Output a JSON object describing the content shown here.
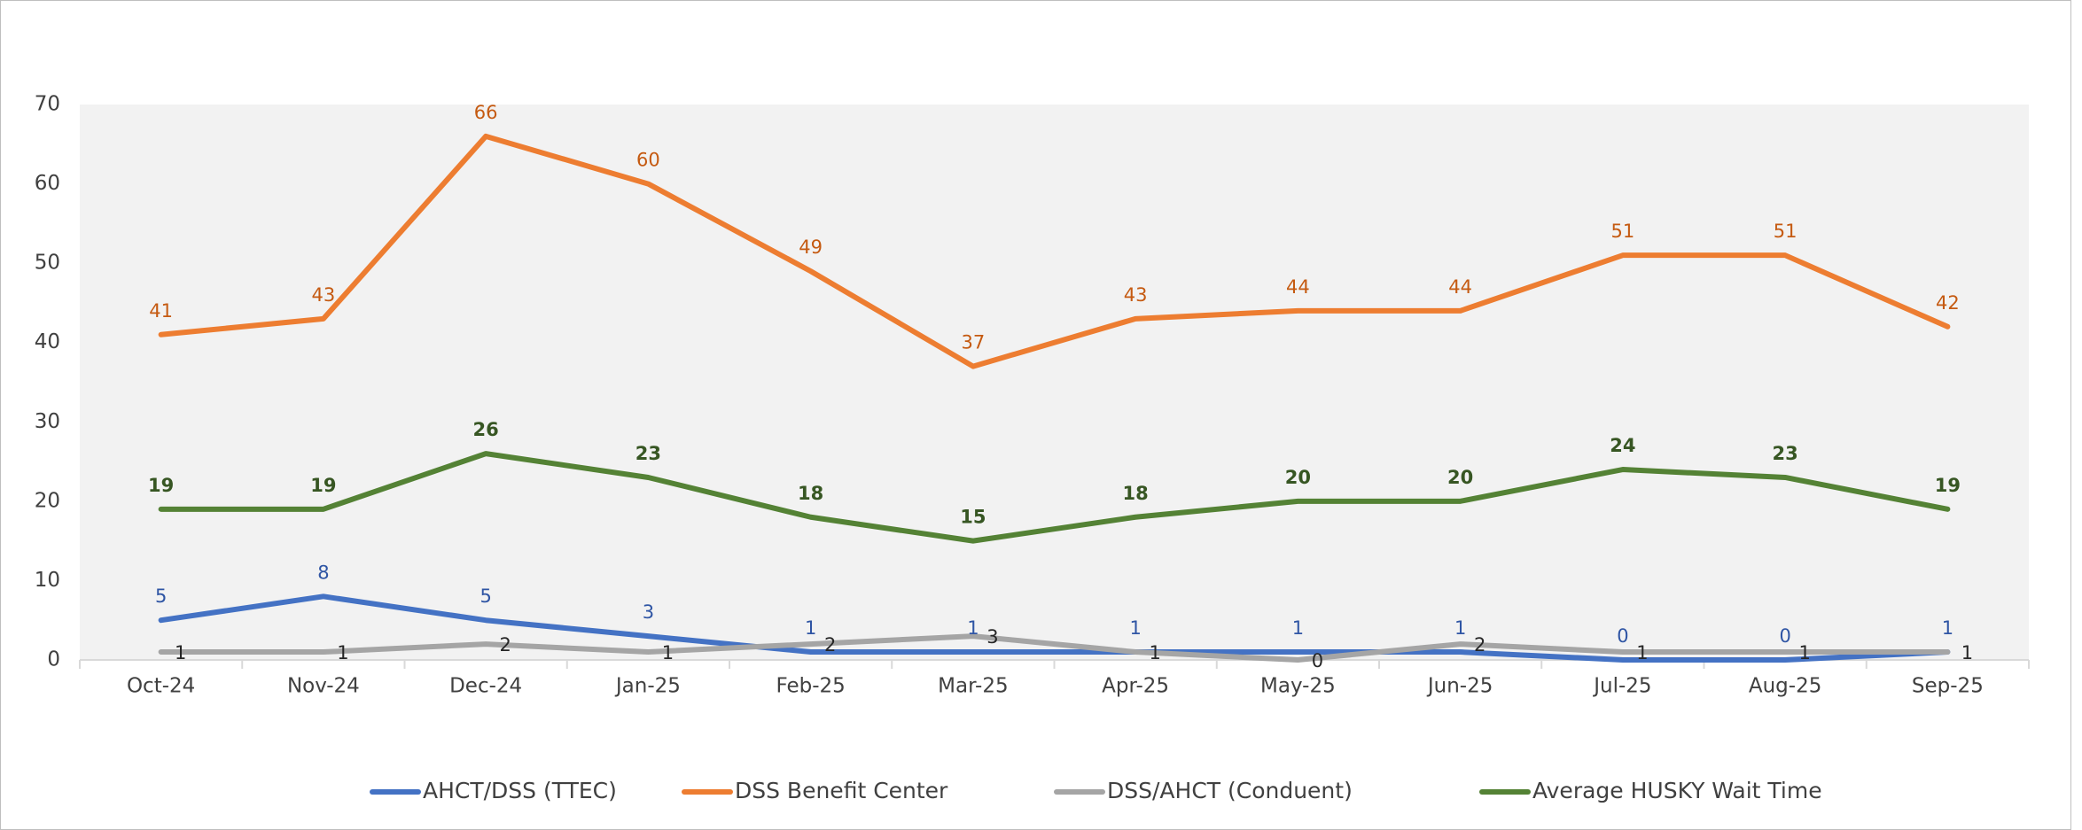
{
  "chart_data": {
    "type": "line",
    "categories": [
      "Oct-24",
      "Nov-24",
      "Dec-24",
      "Jan-25",
      "Feb-25",
      "Mar-25",
      "Apr-25",
      "May-25",
      "Jun-25",
      "Jul-25",
      "Aug-25",
      "Sep-25"
    ],
    "series": [
      {
        "name": "AHCT/DSS (TTEC)",
        "color": "#4472c4",
        "label_color": "#2f55a4",
        "values": [
          5,
          8,
          5,
          3,
          1,
          1,
          1,
          1,
          1,
          0,
          0,
          1
        ]
      },
      {
        "name": "DSS Benefit Center",
        "color": "#ed7d31",
        "label_color": "#c55a11",
        "values": [
          41,
          43,
          66,
          60,
          49,
          37,
          43,
          44,
          44,
          51,
          51,
          42
        ]
      },
      {
        "name": "DSS/AHCT (Conduent)",
        "color": "#a5a5a5",
        "label_color": "#262626",
        "values": [
          1,
          1,
          2,
          1,
          2,
          3,
          1,
          0,
          2,
          1,
          1,
          1
        ]
      },
      {
        "name": "Average HUSKY Wait Time",
        "color": "#548235",
        "label_color": "#375623",
        "values": [
          19,
          19,
          26,
          23,
          18,
          15,
          18,
          20,
          20,
          24,
          23,
          19
        ]
      }
    ],
    "ylim": [
      0,
      70
    ],
    "yticks": [
      0,
      10,
      20,
      30,
      40,
      50,
      60,
      70
    ],
    "legend": "bottom",
    "plot_background": "#f2f2f2"
  }
}
